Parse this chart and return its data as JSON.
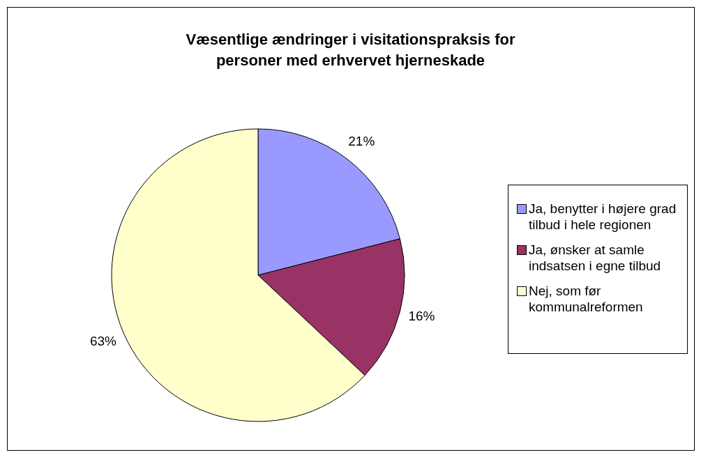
{
  "chart_data": {
    "type": "pie",
    "title": "Væsentlige ændringer i visitationspraksis for personer med erhvervet hjerneskade",
    "categories": [
      "Ja, benytter i højere grad tilbud i hele regionen",
      "Ja, ønsker at samle indsatsen i egne tilbud",
      "Nej, som før kommunalreformen"
    ],
    "values": [
      21,
      16,
      63
    ],
    "value_labels": [
      "21%",
      "16%",
      "63%"
    ],
    "colors": [
      "#9999ff",
      "#993366",
      "#ffffcc"
    ],
    "legend": "right"
  }
}
